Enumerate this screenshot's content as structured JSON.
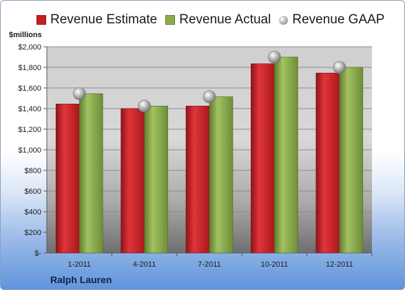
{
  "legend": {
    "estimate": "Revenue Estimate",
    "actual": "Revenue Actual",
    "gaap": "Revenue GAAP"
  },
  "unit_label": "$millions",
  "company": "Ralph Lauren",
  "colors": {
    "estimate": "#c81e24",
    "actual": "#8cad4e",
    "gaap": "#b0b0b0"
  },
  "chart_data": {
    "type": "bar",
    "title": "",
    "xlabel": "",
    "ylabel": "$millions",
    "categories": [
      "1-2011",
      "4-2011",
      "7-2011",
      "10-2011",
      "12-2011"
    ],
    "series": [
      {
        "name": "Revenue Estimate",
        "values": [
          1445,
          1400,
          1425,
          1835,
          1745
        ]
      },
      {
        "name": "Revenue Actual",
        "values": [
          1545,
          1425,
          1515,
          1900,
          1800
        ]
      },
      {
        "name": "Revenue GAAP",
        "values": [
          1545,
          1425,
          1515,
          1900,
          1800
        ],
        "style": "marker"
      }
    ],
    "ylim": [
      0,
      2000
    ],
    "yticks": [
      0,
      200,
      400,
      600,
      800,
      1000,
      1200,
      1400,
      1600,
      1800,
      2000
    ],
    "ytick_labels": [
      "$-",
      "$200",
      "$400",
      "$600",
      "$800",
      "$1,000",
      "$1,200",
      "$1,400",
      "$1,600",
      "$1,800",
      "$2,000"
    ],
    "grid": true,
    "legend_position": "top"
  }
}
